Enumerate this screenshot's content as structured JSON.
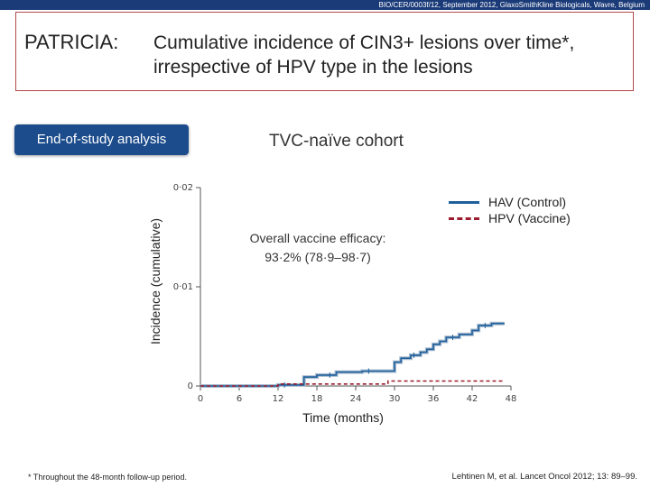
{
  "header": {
    "slide_id": "BIO/CER/0003f/12, September 2012, GlaxoSmithKline Biologicals, Wavre, Belgium"
  },
  "title": {
    "label": "PATRICIA:",
    "text": "Cumulative incidence of CIN3+ lesions over time*, irrespective of HPV type in the lesions"
  },
  "badge": {
    "label": "End-of-study analysis"
  },
  "cohort": {
    "label": "TVC-naïve cohort"
  },
  "annotation": {
    "line1": "Overall vaccine efficacy:",
    "line2": "93·2% (78·9–98·7)"
  },
  "colors": {
    "hav": "#1f5f9c",
    "hpv": "#9b1c2c",
    "brand": "#1a3a78",
    "badge": "#1c4c8c"
  },
  "chart_data": {
    "type": "line",
    "title": "Cumulative incidence of CIN3+ lesions over time",
    "xlabel": "Time (months)",
    "ylabel": "Incidence (cumulative)",
    "xlim": [
      0,
      48
    ],
    "ylim": [
      0,
      0.02
    ],
    "x_ticks": [
      0,
      6,
      12,
      18,
      24,
      30,
      36,
      42,
      48
    ],
    "y_ticks": [
      0,
      0.01,
      0.02
    ],
    "y_tick_labels": [
      "0",
      "0·01",
      "0·02"
    ],
    "legend": [
      "HAV (Control)",
      "HPV (Vaccine)"
    ],
    "legend_position": "top-right",
    "series": [
      {
        "name": "HAV (Control)",
        "style": "solid",
        "x": [
          0,
          12,
          12,
          16,
          16,
          18,
          18,
          21,
          21,
          25,
          25,
          30,
          30,
          31,
          31,
          32.5,
          32.5,
          34,
          34,
          35,
          35,
          36,
          36,
          37,
          37,
          38,
          38,
          40,
          40,
          42,
          42,
          43,
          43,
          45,
          45,
          47
        ],
        "y": [
          0,
          0,
          0.0001,
          0.0001,
          0.0009,
          0.0009,
          0.0011,
          0.0011,
          0.0014,
          0.0014,
          0.0015,
          0.0015,
          0.0024,
          0.0024,
          0.0028,
          0.0028,
          0.0031,
          0.0031,
          0.0034,
          0.0034,
          0.0037,
          0.0037,
          0.0042,
          0.0042,
          0.0045,
          0.0045,
          0.0049,
          0.0049,
          0.0052,
          0.0052,
          0.0056,
          0.0056,
          0.0061,
          0.0061,
          0.0063,
          0.0063
        ]
      },
      {
        "name": "HPV (Vaccine)",
        "style": "dashed",
        "x": [
          0,
          12,
          12,
          29,
          29,
          47
        ],
        "y": [
          0,
          0,
          0.0002,
          0.0002,
          0.0005,
          0.0005
        ]
      }
    ]
  },
  "footnote": "* Throughout the 48-month follow-up period.",
  "citation": "Lehtinen M, et al. Lancet Oncol 2012; 13: 89–99."
}
